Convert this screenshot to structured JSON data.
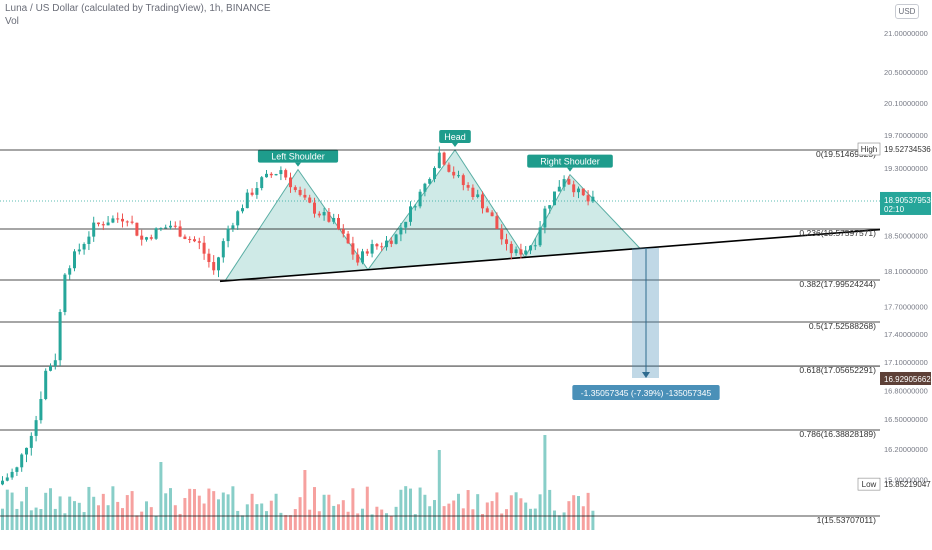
{
  "header": {
    "symbol_title": "Luna / US Dollar (calculated by TradingView), 1h, BINANCE",
    "volume_label": "Vol",
    "currency": "USD"
  },
  "chart_data": {
    "type": "candlestick",
    "ylim": [
      15.4,
      21.3
    ],
    "y_scale": "log",
    "price_axis_ticks": [
      "21.00000000",
      "20.50000000",
      "20.10000000",
      "19.70000000",
      "19.30000000",
      "18.50000000",
      "18.10000000",
      "17.70000000",
      "17.40000000",
      "17.10000000",
      "16.80000000",
      "16.50000000",
      "16.20000000",
      "15.90000000"
    ],
    "high": {
      "label": "High",
      "value": "19.52734536"
    },
    "low": {
      "label": "Low",
      "value": "15.85219047"
    },
    "last_price": {
      "value": "18.90537953",
      "countdown": "02:10",
      "color": "#26a69a"
    },
    "target_price": {
      "value": "16.92905662",
      "color": "#5d4037"
    },
    "fibonacci_levels": [
      {
        "ratio": 0,
        "label": "0(19.51469525)",
        "price": 19.5147
      },
      {
        "ratio": 0.236,
        "label": "0.236(18.57597571)",
        "price": 18.576
      },
      {
        "ratio": 0.382,
        "label": "0.382(17.99524244)",
        "price": 17.9952
      },
      {
        "ratio": 0.5,
        "label": "0.5(17.52588268)",
        "price": 17.5259
      },
      {
        "ratio": 0.618,
        "label": "0.618(17.05652291)",
        "price": 17.0565
      },
      {
        "ratio": 0.786,
        "label": "0.786(16.38828189)",
        "price": 16.3883
      },
      {
        "ratio": 1,
        "label": "1(15.53707011)",
        "price": 15.5371
      }
    ],
    "pattern_labels": {
      "left_shoulder": "Left Shoulder",
      "head": "Head",
      "right_shoulder": "Right Shoulder"
    },
    "measure": {
      "label": "-1.35057345 (-7.39%) -135057345",
      "color": "#4a90b8"
    },
    "colors": {
      "up": "#26a69a",
      "down": "#ef5350",
      "fill": "#a8d8d4",
      "label_bg": "#1e9c8c"
    },
    "grid": false
  }
}
